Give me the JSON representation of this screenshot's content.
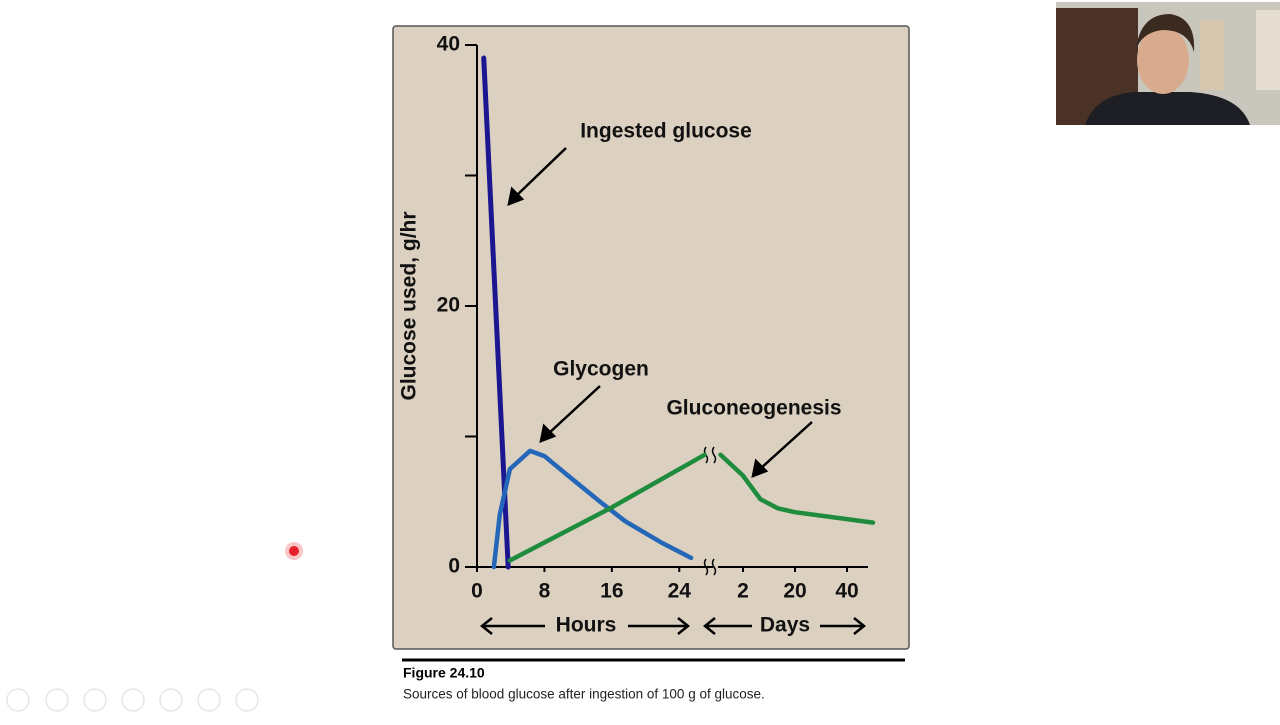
{
  "chart_data": {
    "type": "line",
    "ylabel": "Glucose used, g/hr",
    "ylim": [
      0,
      40
    ],
    "yticks": [
      0,
      20,
      40
    ],
    "yminor": [
      10,
      30
    ],
    "xlabel": "Hours",
    "xlim": [
      0,
      28
    ],
    "xticks": [
      0,
      8,
      16,
      24
    ],
    "x2label": "Days",
    "x2lim": [
      0,
      50
    ],
    "x2ticks": [
      2,
      20,
      40
    ],
    "series": [
      {
        "name": "Ingested glucose",
        "color": "#1c1690",
        "x": [
          0.8,
          3.7
        ],
        "values": [
          39,
          0
        ]
      },
      {
        "name": "Glycogen",
        "color": "#2467b8",
        "x": [
          2,
          2.7,
          3.9,
          6.3,
          8,
          11,
          14.6,
          17.6,
          21.8,
          25.4
        ],
        "values": [
          0,
          4,
          7.5,
          8.9,
          8.5,
          6.9,
          5,
          3.5,
          1.9,
          0.7
        ]
      },
      {
        "name": "Gluconeogenesis",
        "color": "#1e8c3c",
        "x": [
          3.9,
          15.8,
          27
        ],
        "values": [
          0.5,
          4.5,
          8.6
        ],
        "x2": [
          0.2,
          2,
          8,
          14,
          20,
          50
        ],
        "values2": [
          8.6,
          7,
          5.2,
          4.5,
          4.2,
          3.4
        ]
      }
    ]
  },
  "caption": {
    "figure": "Figure 24.10",
    "text": "Sources of blood glucose after ingestion of 100 g of glucose."
  }
}
